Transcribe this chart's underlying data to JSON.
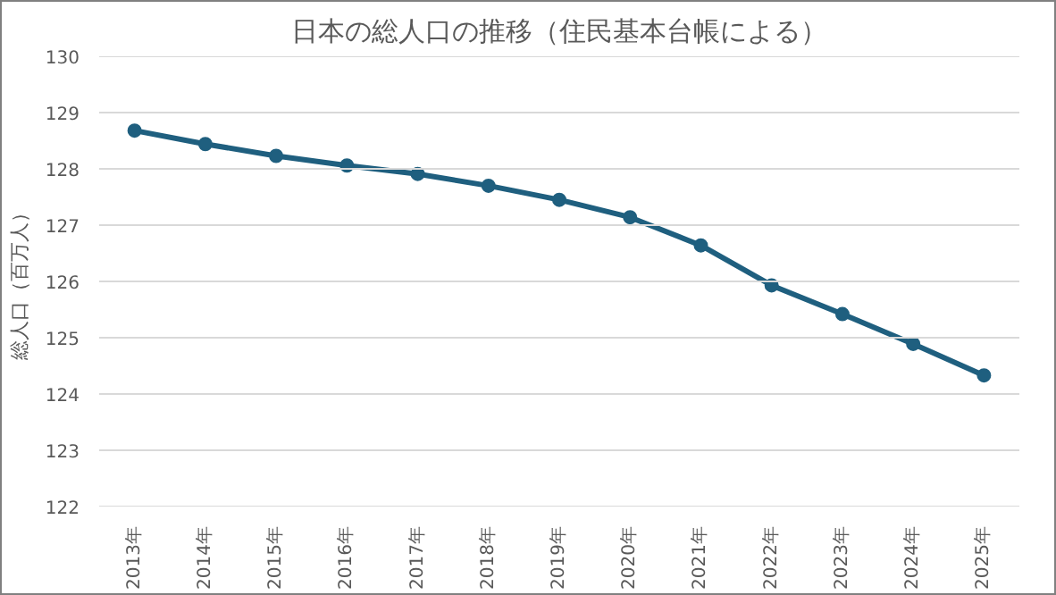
{
  "chart_data": {
    "type": "line",
    "title": "日本の総人口の推移（住民基本台帳による）",
    "ylabel": "総人口（百万人）",
    "categories": [
      "2013年",
      "2014年",
      "2015年",
      "2016年",
      "2017年",
      "2018年",
      "2019年",
      "2020年",
      "2021年",
      "2022年",
      "2023年",
      "2024年",
      "2025年"
    ],
    "series": [
      {
        "color": "#1f5f7f",
        "values": [
          128.68,
          128.44,
          128.23,
          128.06,
          127.91,
          127.7,
          127.45,
          127.14,
          126.64,
          125.93,
          125.42,
          124.89,
          124.33
        ]
      }
    ],
    "ylim": [
      122,
      130
    ],
    "yticks": [
      122,
      123,
      124,
      125,
      126,
      127,
      128,
      129,
      130
    ],
    "grid": "y",
    "marker": "circle",
    "line_style": "solid"
  }
}
